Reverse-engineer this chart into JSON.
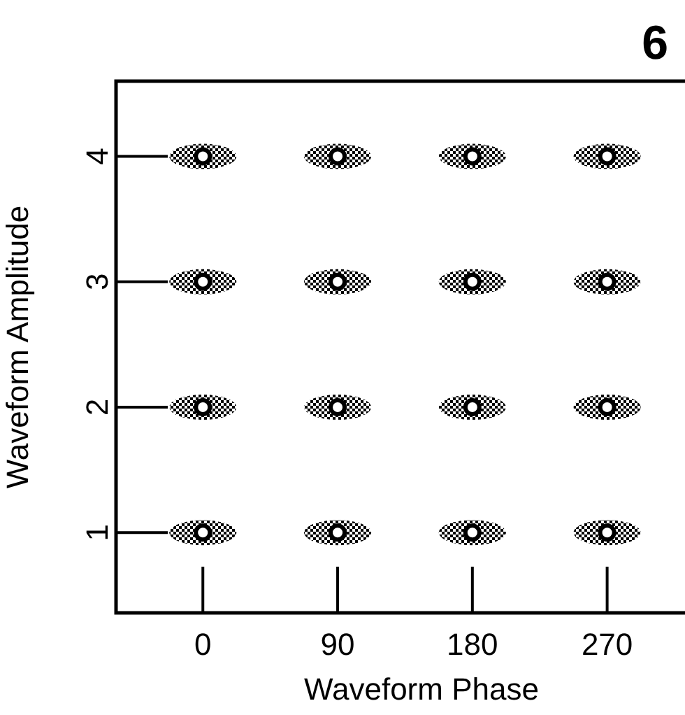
{
  "chart_data": {
    "type": "scatter",
    "title": "6",
    "xlabel": "Waveform Phase",
    "ylabel": "Waveform Amplitude",
    "xlim": [
      -58,
      322
    ],
    "xticks": [
      0,
      90,
      180,
      270
    ],
    "ylim": [
      0.36,
      4.6
    ],
    "yticks": [
      1,
      2,
      3,
      4
    ],
    "grid": false,
    "marker": "circle",
    "series": [
      {
        "color": "#000000",
        "x": [
          0,
          90,
          180,
          270,
          0,
          90,
          180,
          270,
          0,
          90,
          180,
          270,
          0,
          90,
          180,
          270
        ],
        "values": [
          1,
          1,
          1,
          1,
          2,
          2,
          2,
          2,
          3,
          3,
          3,
          3,
          4,
          4,
          4,
          4
        ]
      }
    ]
  }
}
